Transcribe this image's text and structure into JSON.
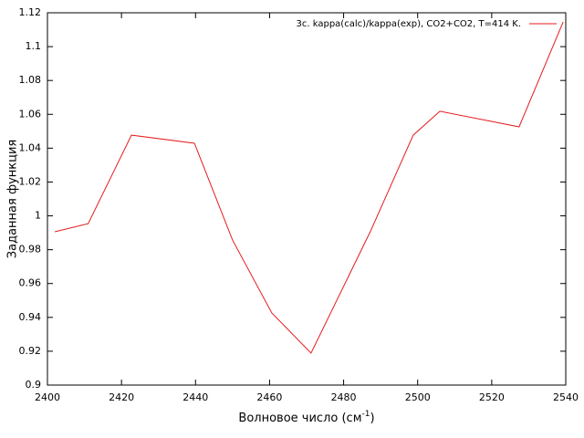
{
  "chart_data": {
    "type": "line",
    "x_label": {
      "text": "Волновое число (см",
      "sup": "-1",
      "tail": ")"
    },
    "y_label": "Заданная функция",
    "x": [
      2402,
      2411,
      2422.7,
      2439.7,
      2450,
      2460.6,
      2471.2,
      2487.3,
      2498.8,
      2506,
      2527.4,
      2539.3
    ],
    "series": [
      {
        "name": "3c. kappa(calc)/kappa(exp),  CO2+CO2, T=414 K.",
        "color": "#e41a1c",
        "values": [
          0.9906,
          0.9954,
          1.0477,
          1.0429,
          0.9857,
          0.9426,
          0.9189,
          0.9911,
          1.0477,
          1.0618,
          1.0526,
          1.1146
        ]
      }
    ],
    "xlim": [
      2400,
      2540
    ],
    "xticks": [
      2400,
      2420,
      2440,
      2460,
      2480,
      2500,
      2520,
      2540
    ],
    "ylim": [
      0.9,
      1.12
    ],
    "yticks": [
      0.9,
      0.92,
      0.94,
      0.96,
      0.98,
      1,
      1.02,
      1.04,
      1.06,
      1.08,
      1.1,
      1.12
    ],
    "legend": "top-right"
  }
}
